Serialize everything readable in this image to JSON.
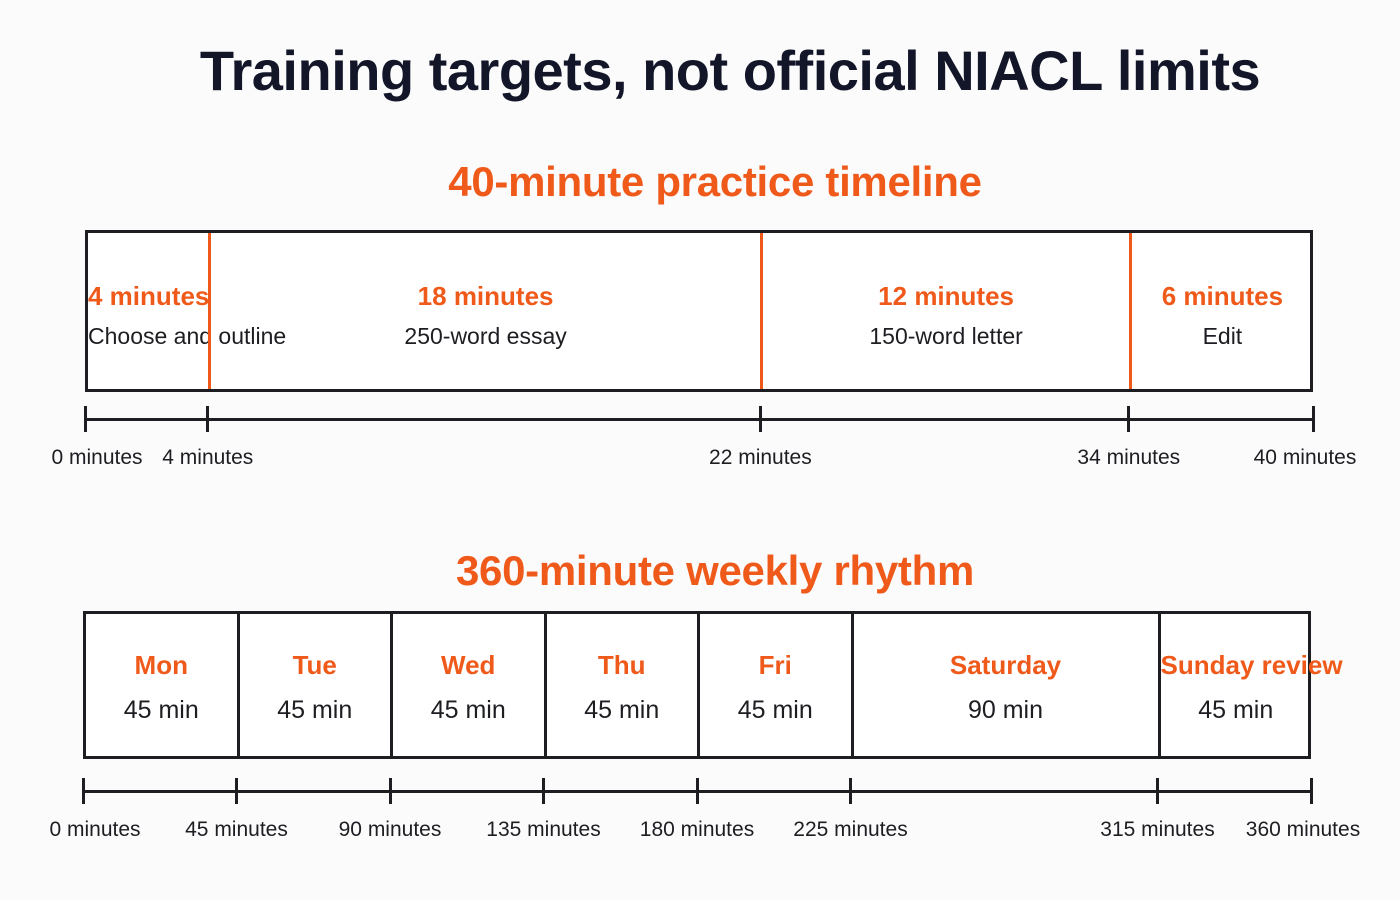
{
  "title": "Training targets, not official NIACL limits",
  "practice": {
    "heading": "40-minute practice timeline",
    "total": 40,
    "segments": [
      {
        "duration_label": "4 minutes",
        "task": "Choose and outline",
        "start": 0,
        "end": 4
      },
      {
        "duration_label": "18 minutes",
        "task": "250-word essay",
        "start": 4,
        "end": 22
      },
      {
        "duration_label": "12 minutes",
        "task": "150-word letter",
        "start": 22,
        "end": 34
      },
      {
        "duration_label": "6 minutes",
        "task": "Edit",
        "start": 34,
        "end": 40
      }
    ],
    "ticks": [
      {
        "value": 0,
        "label": "0 minutes"
      },
      {
        "value": 4,
        "label": "4 minutes"
      },
      {
        "value": 22,
        "label": "22 minutes"
      },
      {
        "value": 34,
        "label": "34 minutes"
      },
      {
        "value": 40,
        "label": "40 minutes"
      }
    ]
  },
  "weekly": {
    "heading": "360-minute weekly rhythm",
    "total": 360,
    "segments": [
      {
        "day": "Mon",
        "duration_label": "45 min",
        "start": 0,
        "end": 45
      },
      {
        "day": "Tue",
        "duration_label": "45 min",
        "start": 45,
        "end": 90
      },
      {
        "day": "Wed",
        "duration_label": "45 min",
        "start": 90,
        "end": 135
      },
      {
        "day": "Thu",
        "duration_label": "45 min",
        "start": 135,
        "end": 180
      },
      {
        "day": "Fri",
        "duration_label": "45 min",
        "start": 180,
        "end": 225
      },
      {
        "day": "Saturday",
        "duration_label": "90 min",
        "start": 225,
        "end": 315
      },
      {
        "day": "Sunday review",
        "duration_label": "45 min",
        "start": 315,
        "end": 360
      }
    ],
    "ticks": [
      {
        "value": 0,
        "label": "0 minutes"
      },
      {
        "value": 45,
        "label": "45 minutes"
      },
      {
        "value": 90,
        "label": "90 minutes"
      },
      {
        "value": 135,
        "label": "135 minutes"
      },
      {
        "value": 180,
        "label": "180 minutes"
      },
      {
        "value": 225,
        "label": "225 minutes"
      },
      {
        "value": 315,
        "label": "315 minutes"
      },
      {
        "value": 360,
        "label": "360 minutes"
      }
    ]
  },
  "colors": {
    "accent": "#ef5a1b",
    "ink": "#121628",
    "line": "#1d1d22",
    "background": "#fbfbfc"
  }
}
